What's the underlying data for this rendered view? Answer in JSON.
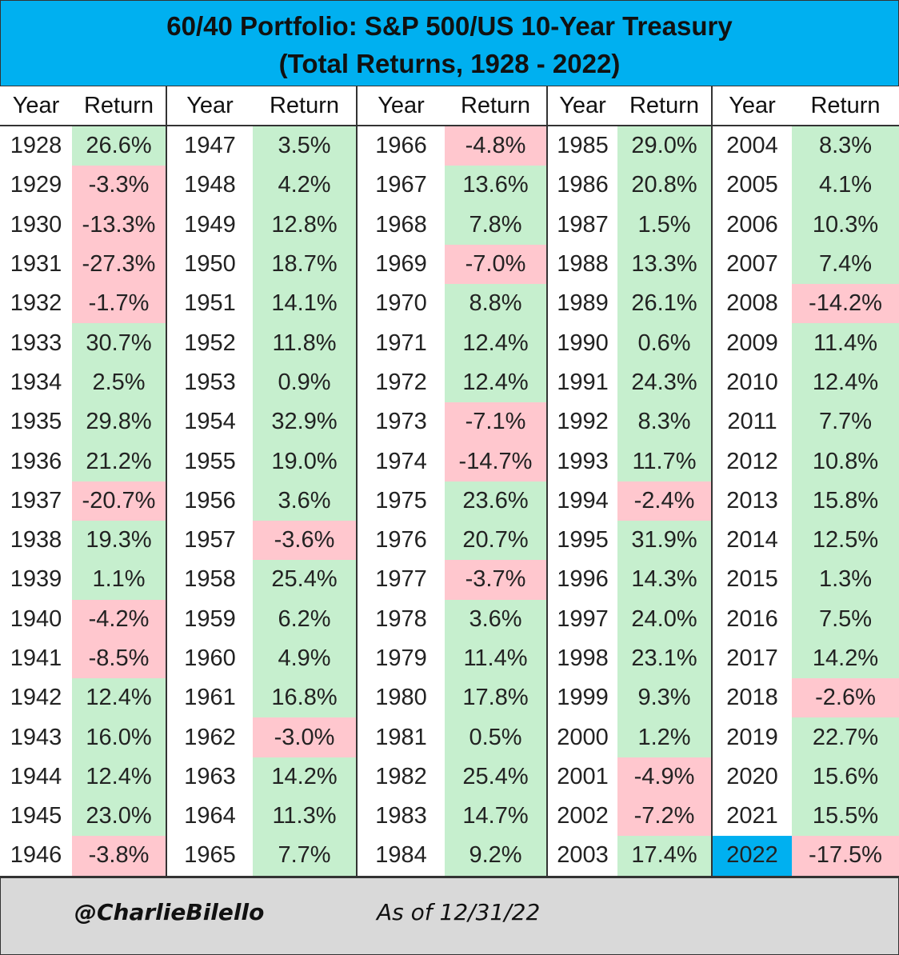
{
  "chart_data": {
    "type": "table",
    "title": "60/40 Portfolio: S&P 500/US 10-Year Treasury",
    "subtitle": "(Total Returns, 1928 - 2022)",
    "column_headers": {
      "year": "Year",
      "return": "Return"
    },
    "highlight_year": "2022",
    "colors": {
      "title_background": "#00b0f0",
      "positive_fill": "#c6efce",
      "positive_text": "#1e7b34",
      "negative_fill": "#ffc7ce",
      "negative_text": "#d0001c",
      "highlight_fill": "#00b0f0",
      "footer_background": "#d9d9d9"
    },
    "columns": [
      {
        "years": [
          "1928",
          "1929",
          "1930",
          "1931",
          "1932",
          "1933",
          "1934",
          "1935",
          "1936",
          "1937",
          "1938",
          "1939",
          "1940",
          "1941",
          "1942",
          "1943",
          "1944",
          "1945",
          "1946"
        ],
        "returns": [
          "26.6%",
          "-3.3%",
          "-13.3%",
          "-27.3%",
          "-1.7%",
          "30.7%",
          "2.5%",
          "29.8%",
          "21.2%",
          "-20.7%",
          "19.3%",
          "1.1%",
          "-4.2%",
          "-8.5%",
          "12.4%",
          "16.0%",
          "12.4%",
          "23.0%",
          "-3.8%"
        ]
      },
      {
        "years": [
          "1947",
          "1948",
          "1949",
          "1950",
          "1951",
          "1952",
          "1953",
          "1954",
          "1955",
          "1956",
          "1957",
          "1958",
          "1959",
          "1960",
          "1961",
          "1962",
          "1963",
          "1964",
          "1965"
        ],
        "returns": [
          "3.5%",
          "4.2%",
          "12.8%",
          "18.7%",
          "14.1%",
          "11.8%",
          "0.9%",
          "32.9%",
          "19.0%",
          "3.6%",
          "-3.6%",
          "25.4%",
          "6.2%",
          "4.9%",
          "16.8%",
          "-3.0%",
          "14.2%",
          "11.3%",
          "7.7%"
        ]
      },
      {
        "years": [
          "1966",
          "1967",
          "1968",
          "1969",
          "1970",
          "1971",
          "1972",
          "1973",
          "1974",
          "1975",
          "1976",
          "1977",
          "1978",
          "1979",
          "1980",
          "1981",
          "1982",
          "1983",
          "1984"
        ],
        "returns": [
          "-4.8%",
          "13.6%",
          "7.8%",
          "-7.0%",
          "8.8%",
          "12.4%",
          "12.4%",
          "-7.1%",
          "-14.7%",
          "23.6%",
          "20.7%",
          "-3.7%",
          "3.6%",
          "11.4%",
          "17.8%",
          "0.5%",
          "25.4%",
          "14.7%",
          "9.2%"
        ]
      },
      {
        "years": [
          "1985",
          "1986",
          "1987",
          "1988",
          "1989",
          "1990",
          "1991",
          "1992",
          "1993",
          "1994",
          "1995",
          "1996",
          "1997",
          "1998",
          "1999",
          "2000",
          "2001",
          "2002",
          "2003"
        ],
        "returns": [
          "29.0%",
          "20.8%",
          "1.5%",
          "13.3%",
          "26.1%",
          "0.6%",
          "24.3%",
          "8.3%",
          "11.7%",
          "-2.4%",
          "31.9%",
          "14.3%",
          "24.0%",
          "23.1%",
          "9.3%",
          "1.2%",
          "-4.9%",
          "-7.2%",
          "17.4%"
        ]
      },
      {
        "years": [
          "2004",
          "2005",
          "2006",
          "2007",
          "2008",
          "2009",
          "2010",
          "2011",
          "2012",
          "2013",
          "2014",
          "2015",
          "2016",
          "2017",
          "2018",
          "2019",
          "2020",
          "2021",
          "2022"
        ],
        "returns": [
          "8.3%",
          "4.1%",
          "10.3%",
          "7.4%",
          "-14.2%",
          "11.4%",
          "12.4%",
          "7.7%",
          "10.8%",
          "15.8%",
          "12.5%",
          "1.3%",
          "7.5%",
          "14.2%",
          "-2.6%",
          "22.7%",
          "15.6%",
          "15.5%",
          "-17.5%"
        ]
      }
    ]
  },
  "footer": {
    "handle": "@CharlieBilello",
    "as_of": "As of 12/31/22"
  }
}
